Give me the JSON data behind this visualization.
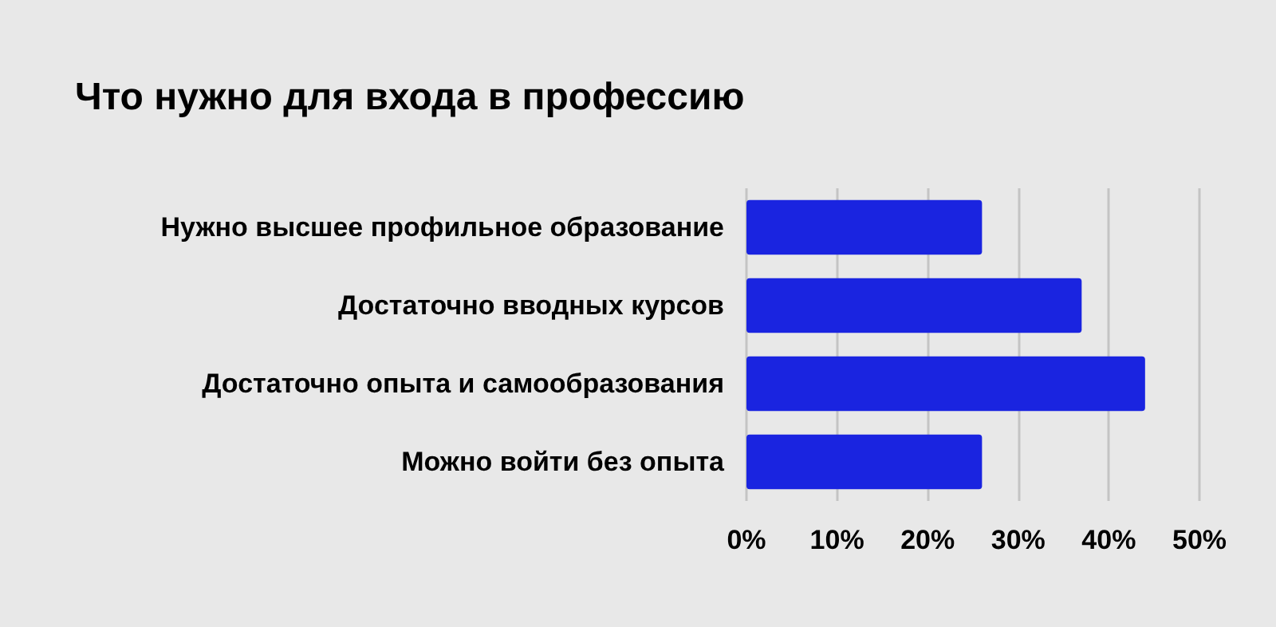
{
  "chart_data": {
    "type": "bar",
    "orientation": "horizontal",
    "title": "Что нужно для входа в профессию",
    "categories": [
      "Нужно высшее профильное образование",
      "Достаточно вводных курсов",
      "Достаточно опыта и самообразования",
      "Можно войти без опыта"
    ],
    "values": [
      26,
      37,
      44,
      26
    ],
    "color": "#1a24e0",
    "xlim": [
      0,
      50
    ],
    "xticks": [
      {
        "value": 0,
        "label": "0%"
      },
      {
        "value": 10,
        "label": "10%"
      },
      {
        "value": 20,
        "label": "20%"
      },
      {
        "value": 30,
        "label": "30%"
      },
      {
        "value": 40,
        "label": "40%"
      },
      {
        "value": 50,
        "label": "50%"
      }
    ],
    "grid": "x"
  }
}
